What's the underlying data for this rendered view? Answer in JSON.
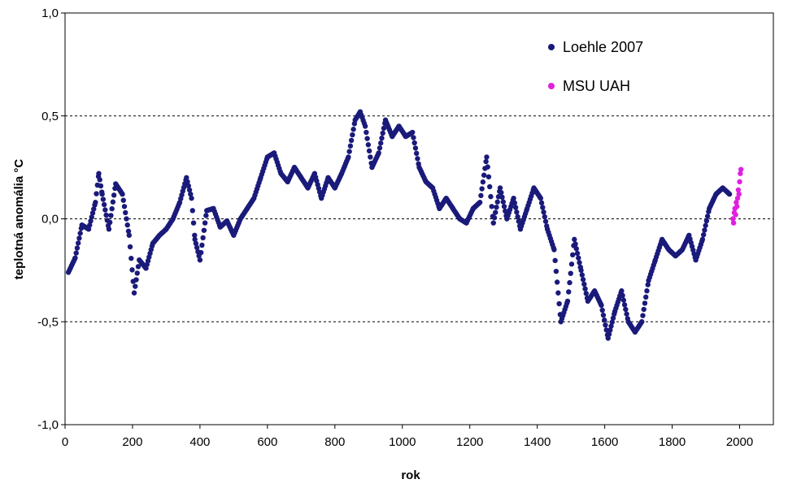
{
  "chart_data": {
    "type": "scatter",
    "title": "",
    "xlabel": "rok",
    "ylabel": "teplotná anomália °C",
    "xlim": [
      0,
      2100
    ],
    "ylim": [
      -1.0,
      1.0
    ],
    "x_ticks": [
      0,
      200,
      400,
      600,
      800,
      1000,
      1200,
      1400,
      1600,
      1800,
      2000
    ],
    "y_ticks": [
      -1.0,
      -0.5,
      0.0,
      0.5,
      1.0
    ],
    "y_tick_labels": [
      "-1,0",
      "-0,5",
      "0,0",
      "0,5",
      "1,0"
    ],
    "grid": "horizontal dashed lines at -0,5, 0,0 and 0,5",
    "legend_position": "top-right",
    "series": [
      {
        "name": "Loehle 2007",
        "color": "#1a1a7a",
        "x": [
          10,
          30,
          50,
          70,
          90,
          100,
          110,
          130,
          150,
          170,
          190,
          205,
          220,
          240,
          260,
          280,
          300,
          320,
          340,
          360,
          375,
          385,
          400,
          420,
          440,
          460,
          480,
          500,
          520,
          540,
          560,
          580,
          600,
          620,
          640,
          660,
          680,
          700,
          720,
          740,
          760,
          780,
          800,
          820,
          840,
          860,
          875,
          890,
          910,
          930,
          950,
          970,
          990,
          1010,
          1030,
          1050,
          1070,
          1090,
          1110,
          1130,
          1150,
          1170,
          1190,
          1210,
          1230,
          1250,
          1270,
          1290,
          1310,
          1330,
          1350,
          1370,
          1390,
          1410,
          1430,
          1450,
          1470,
          1490,
          1510,
          1530,
          1550,
          1570,
          1590,
          1610,
          1630,
          1650,
          1670,
          1690,
          1710,
          1730,
          1750,
          1770,
          1790,
          1810,
          1830,
          1850,
          1870,
          1890,
          1910,
          1930,
          1950,
          1970
        ],
        "y": [
          -0.26,
          -0.19,
          -0.03,
          -0.05,
          0.08,
          0.22,
          0.12,
          -0.05,
          0.17,
          0.12,
          -0.08,
          -0.36,
          -0.2,
          -0.24,
          -0.12,
          -0.08,
          -0.05,
          0.0,
          0.08,
          0.2,
          0.1,
          -0.1,
          -0.2,
          0.04,
          0.05,
          -0.04,
          -0.01,
          -0.08,
          0.0,
          0.05,
          0.1,
          0.2,
          0.3,
          0.32,
          0.22,
          0.18,
          0.25,
          0.2,
          0.15,
          0.22,
          0.1,
          0.2,
          0.15,
          0.22,
          0.3,
          0.48,
          0.52,
          0.45,
          0.25,
          0.32,
          0.48,
          0.4,
          0.45,
          0.4,
          0.42,
          0.25,
          0.18,
          0.15,
          0.05,
          0.1,
          0.05,
          0.0,
          -0.02,
          0.05,
          0.08,
          0.3,
          -0.02,
          0.15,
          0.0,
          0.1,
          -0.05,
          0.05,
          0.15,
          0.1,
          -0.05,
          -0.15,
          -0.5,
          -0.4,
          -0.1,
          -0.25,
          -0.4,
          -0.35,
          -0.42,
          -0.58,
          -0.45,
          -0.35,
          -0.5,
          -0.55,
          -0.5,
          -0.3,
          -0.2,
          -0.1,
          -0.15,
          -0.18,
          -0.15,
          -0.08,
          -0.2,
          -0.1,
          0.05,
          0.12,
          0.15,
          0.12
        ]
      },
      {
        "name": "MSU UAH",
        "color": "#e020e0",
        "x": [
          1980,
          1982,
          1984,
          1986,
          1988,
          1990,
          1992,
          1994,
          1996,
          1998,
          2000,
          2002,
          2004
        ],
        "y": [
          0.0,
          -0.02,
          0.03,
          0.05,
          0.02,
          0.08,
          0.06,
          0.1,
          0.14,
          0.12,
          0.18,
          0.22,
          0.24
        ]
      }
    ]
  }
}
